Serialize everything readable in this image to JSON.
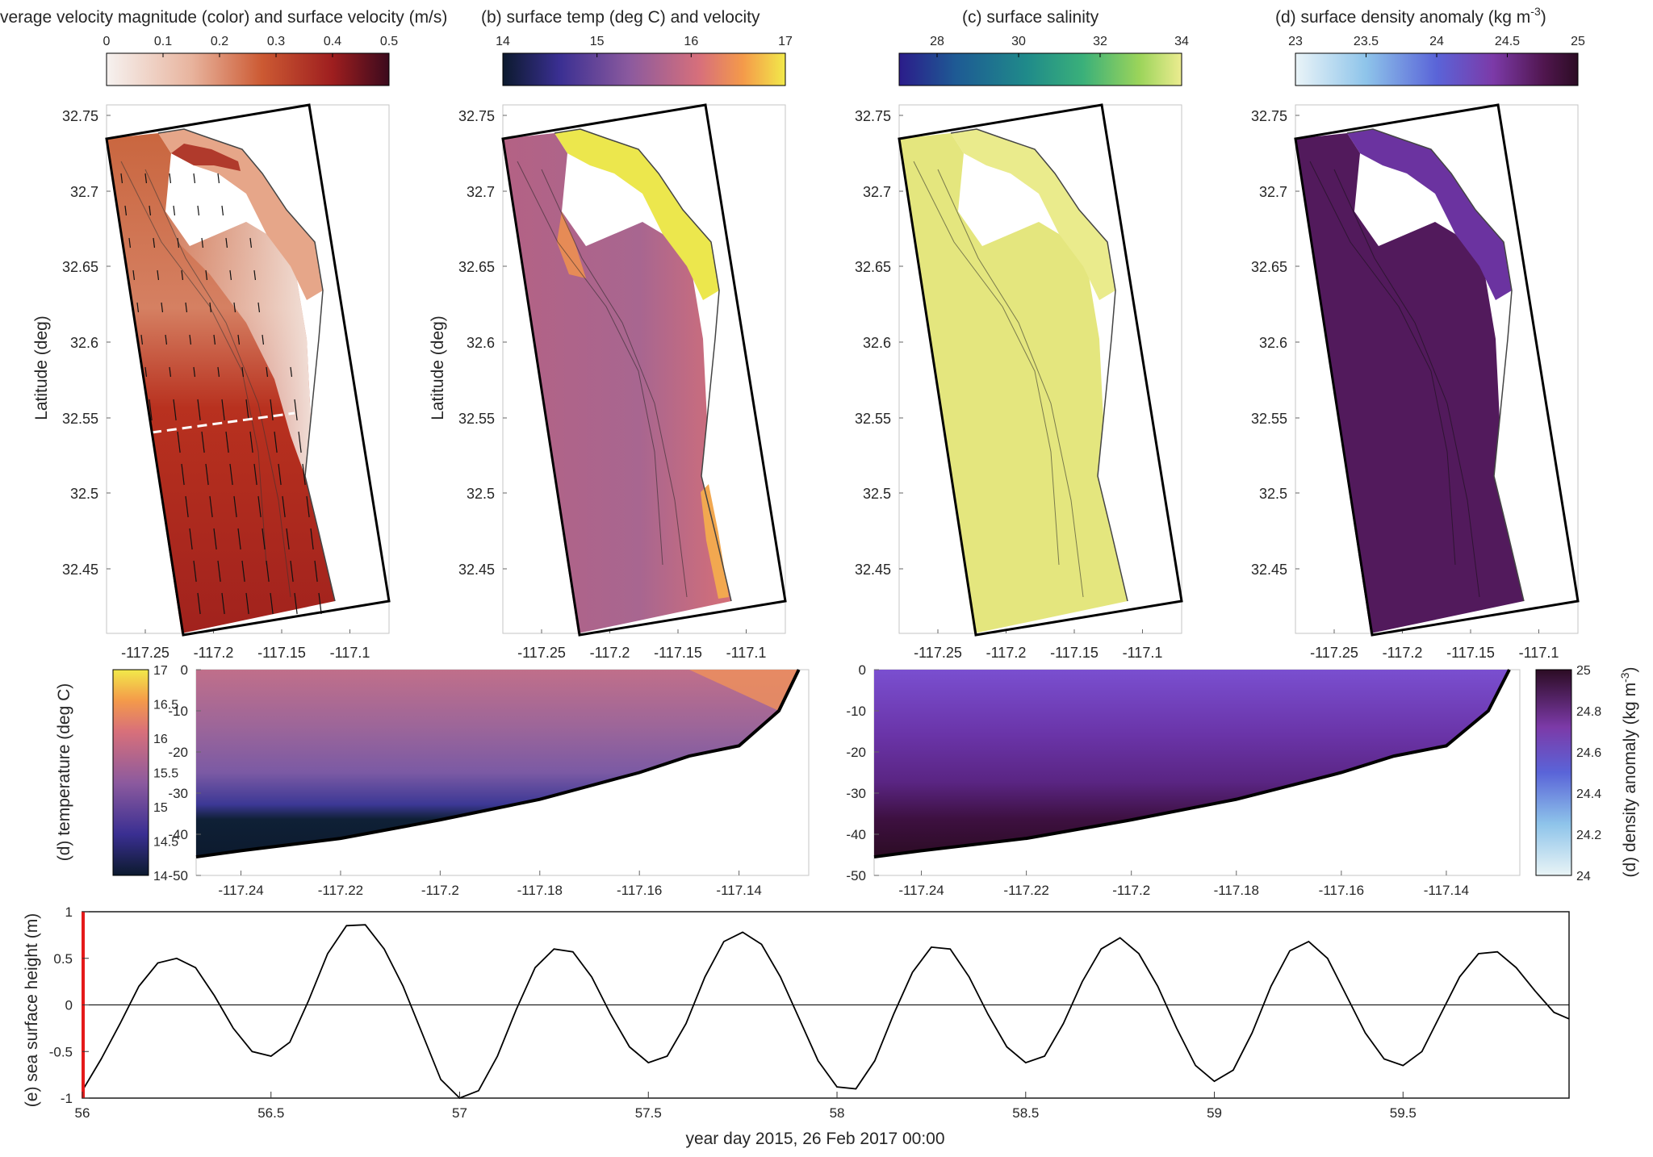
{
  "colors": {
    "velocity_cmap": [
      "#f6f2f0",
      "#e8b49e",
      "#cc5a33",
      "#9e1e1f",
      "#3b0a1d"
    ],
    "temp_cmap": [
      "#0c1a2e",
      "#3a2f92",
      "#8c5a9e",
      "#d8707a",
      "#f49a4a",
      "#f2e94a"
    ],
    "salinity_cmap": [
      "#2b1c8a",
      "#1e5a94",
      "#1f8a8a",
      "#3ab07a",
      "#9bd45a",
      "#ecec90"
    ],
    "density_cmap": [
      "#eaf4f8",
      "#8ec4ea",
      "#5a64d8",
      "#7c3aa8",
      "#50164e",
      "#2c0c24"
    ],
    "tide_line": "#000000",
    "time_marker": "#e51a1a"
  },
  "panels": {
    "a": {
      "title": "verage velocity magnitude (color) and surface velocity (m/s)",
      "cbar_ticks": [
        "0",
        "0.1",
        "0.2",
        "0.3",
        "0.4",
        "0.5"
      ],
      "ylabel": "Latitude (deg)",
      "yticks": [
        "32.75",
        "32.7",
        "32.65",
        "32.6",
        "32.55",
        "32.5",
        "32.45"
      ],
      "xticks": [
        "-117.25",
        "-117.2",
        "-117.15",
        "-117.1"
      ]
    },
    "b": {
      "title": "(b) surface temp (deg C) and velocity",
      "cbar_ticks": [
        "14",
        "15",
        "16",
        "17"
      ],
      "ylabel": "Latitude (deg)",
      "yticks": [
        "32.75",
        "32.7",
        "32.65",
        "32.6",
        "32.55",
        "32.5",
        "32.45"
      ],
      "xticks": [
        "-117.25",
        "-117.2",
        "-117.15",
        "-117.1"
      ]
    },
    "c": {
      "title": "(c) surface salinity",
      "cbar_ticks": [
        "28",
        "30",
        "32",
        "34"
      ],
      "yticks": [
        "32.75",
        "32.7",
        "32.65",
        "32.6",
        "32.55",
        "32.5",
        "32.45"
      ],
      "xticks": [
        "-117.25",
        "-117.2",
        "-117.15",
        "-117.1"
      ]
    },
    "d": {
      "title": "(d) surface density anomaly (kg m",
      "title_sup": "-3",
      "title_end": ")",
      "cbar_ticks": [
        "23",
        "23.5",
        "24",
        "24.5",
        "25"
      ],
      "yticks": [
        "32.75",
        "32.7",
        "32.65",
        "32.6",
        "32.55",
        "32.5",
        "32.45"
      ],
      "xticks": [
        "-117.25",
        "-117.2",
        "-117.15",
        "-117.1"
      ]
    },
    "temp_section": {
      "cbar_label": "(d) temperature (deg C)",
      "cbar_ticks": [
        "17",
        "16.5",
        "16",
        "15.5",
        "15",
        "14.5",
        "14"
      ],
      "yticks": [
        "0",
        "-10",
        "-20",
        "-30",
        "-40",
        "-50"
      ],
      "xticks": [
        "-117.24",
        "-117.22",
        "-117.2",
        "-117.18",
        "-117.16",
        "-117.14"
      ]
    },
    "dens_section": {
      "cbar_label": "(d) density anomaly (kg m",
      "cbar_label_sup": "-3",
      "cbar_label_end": ")",
      "cbar_ticks": [
        "25",
        "24.8",
        "24.6",
        "24.4",
        "24.2",
        "24"
      ],
      "yticks": [
        "0",
        "-10",
        "-20",
        "-30",
        "-40",
        "-50"
      ],
      "xticks": [
        "-117.24",
        "-117.22",
        "-117.2",
        "-117.18",
        "-117.16",
        "-117.14"
      ]
    },
    "tide": {
      "ylabel": "(e) sea surface height (m)",
      "xlabel": "year day 2015, 26 Feb 2017 00:00",
      "yticks": [
        "1",
        "0.5",
        "0",
        "-0.5",
        "-1"
      ],
      "xticks": [
        "56",
        "56.5",
        "57",
        "57.5",
        "58",
        "58.5",
        "59",
        "59.5"
      ]
    }
  },
  "chart_data": [
    {
      "type": "heatmap",
      "title": "verage velocity magnitude (color) and surface velocity (m/s)",
      "ylabel": "Latitude (deg)",
      "xlim": [
        -117.29,
        -117.04
      ],
      "ylim": [
        32.405,
        32.76
      ],
      "colorbar": {
        "range": [
          0,
          0.5
        ],
        "ticks": [
          0,
          0.1,
          0.2,
          0.3,
          0.4,
          0.5
        ],
        "palette": "white-red-dark"
      },
      "features": [
        "surface velocity vectors",
        "white dashed transect at about 32.555"
      ]
    },
    {
      "type": "heatmap",
      "title": "(b) surface temp (deg C) and velocity",
      "ylabel": "Latitude (deg)",
      "xlim": [
        -117.29,
        -117.04
      ],
      "ylim": [
        32.405,
        32.76
      ],
      "colorbar": {
        "range": [
          14,
          17
        ],
        "ticks": [
          14,
          15,
          16,
          17
        ],
        "palette": "thermal"
      }
    },
    {
      "type": "heatmap",
      "title": "(c) surface salinity",
      "xlim": [
        -117.29,
        -117.04
      ],
      "ylim": [
        32.405,
        32.76
      ],
      "colorbar": {
        "range": [
          27,
          34
        ],
        "ticks": [
          28,
          30,
          32,
          34
        ],
        "palette": "haline"
      }
    },
    {
      "type": "heatmap",
      "title": "(d) surface density anomaly (kg m^-3)",
      "xlim": [
        -117.29,
        -117.04
      ],
      "ylim": [
        32.405,
        32.76
      ],
      "colorbar": {
        "range": [
          23,
          25
        ],
        "ticks": [
          23,
          23.5,
          24,
          24.5,
          25
        ],
        "palette": "dense"
      }
    },
    {
      "type": "heatmap",
      "name": "temperature section",
      "cbar_label": "(d) temperature (deg C)",
      "xlim": [
        -117.249,
        -117.126
      ],
      "ylim": [
        -50,
        0
      ],
      "colorbar": {
        "range": [
          14,
          17
        ],
        "ticks": [
          14,
          14.5,
          15,
          15.5,
          16,
          16.5,
          17
        ]
      },
      "bottom_depth": {
        "x": [
          -117.249,
          -117.24,
          -117.22,
          -117.2,
          -117.18,
          -117.16,
          -117.15,
          -117.14,
          -117.132,
          -117.128
        ],
        "y": [
          -45.5,
          -44,
          -41,
          -36.5,
          -31.5,
          -25,
          -21,
          -18.5,
          -10,
          0
        ]
      }
    },
    {
      "type": "heatmap",
      "name": "density section",
      "cbar_label": "(d) density anomaly (kg m^-3)",
      "xlim": [
        -117.249,
        -117.126
      ],
      "ylim": [
        -50,
        0
      ],
      "colorbar": {
        "range": [
          24,
          25
        ],
        "ticks": [
          24,
          24.2,
          24.4,
          24.6,
          24.8,
          25
        ]
      },
      "bottom_depth": {
        "x": [
          -117.249,
          -117.24,
          -117.22,
          -117.2,
          -117.18,
          -117.16,
          -117.15,
          -117.14,
          -117.132,
          -117.128
        ],
        "y": [
          -45.5,
          -44,
          -41,
          -36.5,
          -31.5,
          -25,
          -21,
          -18.5,
          -10,
          0
        ]
      }
    },
    {
      "type": "line",
      "ylabel": "(e) sea surface height (m)",
      "xlabel": "year day 2015, 26 Feb 2017 00:00",
      "xlim": [
        56,
        59.94
      ],
      "ylim": [
        -1,
        1
      ],
      "zero_line": true,
      "current_time_marker": 56,
      "x": [
        56.0,
        56.05,
        56.1,
        56.15,
        56.2,
        56.25,
        56.3,
        56.35,
        56.4,
        56.45,
        56.5,
        56.55,
        56.6,
        56.65,
        56.7,
        56.75,
        56.8,
        56.85,
        56.9,
        56.95,
        57.0,
        57.05,
        57.1,
        57.15,
        57.2,
        57.25,
        57.3,
        57.35,
        57.4,
        57.45,
        57.5,
        57.55,
        57.6,
        57.65,
        57.7,
        57.75,
        57.8,
        57.85,
        57.9,
        57.95,
        58.0,
        58.05,
        58.1,
        58.15,
        58.2,
        58.25,
        58.3,
        58.35,
        58.4,
        58.45,
        58.5,
        58.55,
        58.6,
        58.65,
        58.7,
        58.75,
        58.8,
        58.85,
        58.9,
        58.95,
        59.0,
        59.05,
        59.1,
        59.15,
        59.2,
        59.25,
        59.3,
        59.35,
        59.4,
        59.45,
        59.5,
        59.55,
        59.6,
        59.65,
        59.7,
        59.75,
        59.8,
        59.85,
        59.9,
        59.94
      ],
      "series": [
        {
          "values": [
            -0.92,
            -0.58,
            -0.2,
            0.2,
            0.45,
            0.5,
            0.4,
            0.1,
            -0.25,
            -0.5,
            -0.55,
            -0.4,
            0.05,
            0.55,
            0.85,
            0.86,
            0.6,
            0.2,
            -0.3,
            -0.8,
            -1.0,
            -0.92,
            -0.55,
            -0.05,
            0.4,
            0.6,
            0.57,
            0.3,
            -0.1,
            -0.45,
            -0.62,
            -0.55,
            -0.2,
            0.3,
            0.68,
            0.78,
            0.65,
            0.3,
            -0.15,
            -0.6,
            -0.88,
            -0.9,
            -0.6,
            -0.1,
            0.35,
            0.62,
            0.6,
            0.3,
            -0.1,
            -0.45,
            -0.62,
            -0.55,
            -0.2,
            0.25,
            0.6,
            0.72,
            0.55,
            0.2,
            -0.25,
            -0.65,
            -0.82,
            -0.7,
            -0.3,
            0.2,
            0.58,
            0.68,
            0.5,
            0.1,
            -0.3,
            -0.58,
            -0.65,
            -0.5,
            -0.1,
            0.3,
            0.55,
            0.57,
            0.4,
            0.15,
            -0.08,
            -0.15
          ]
        }
      ]
    }
  ]
}
